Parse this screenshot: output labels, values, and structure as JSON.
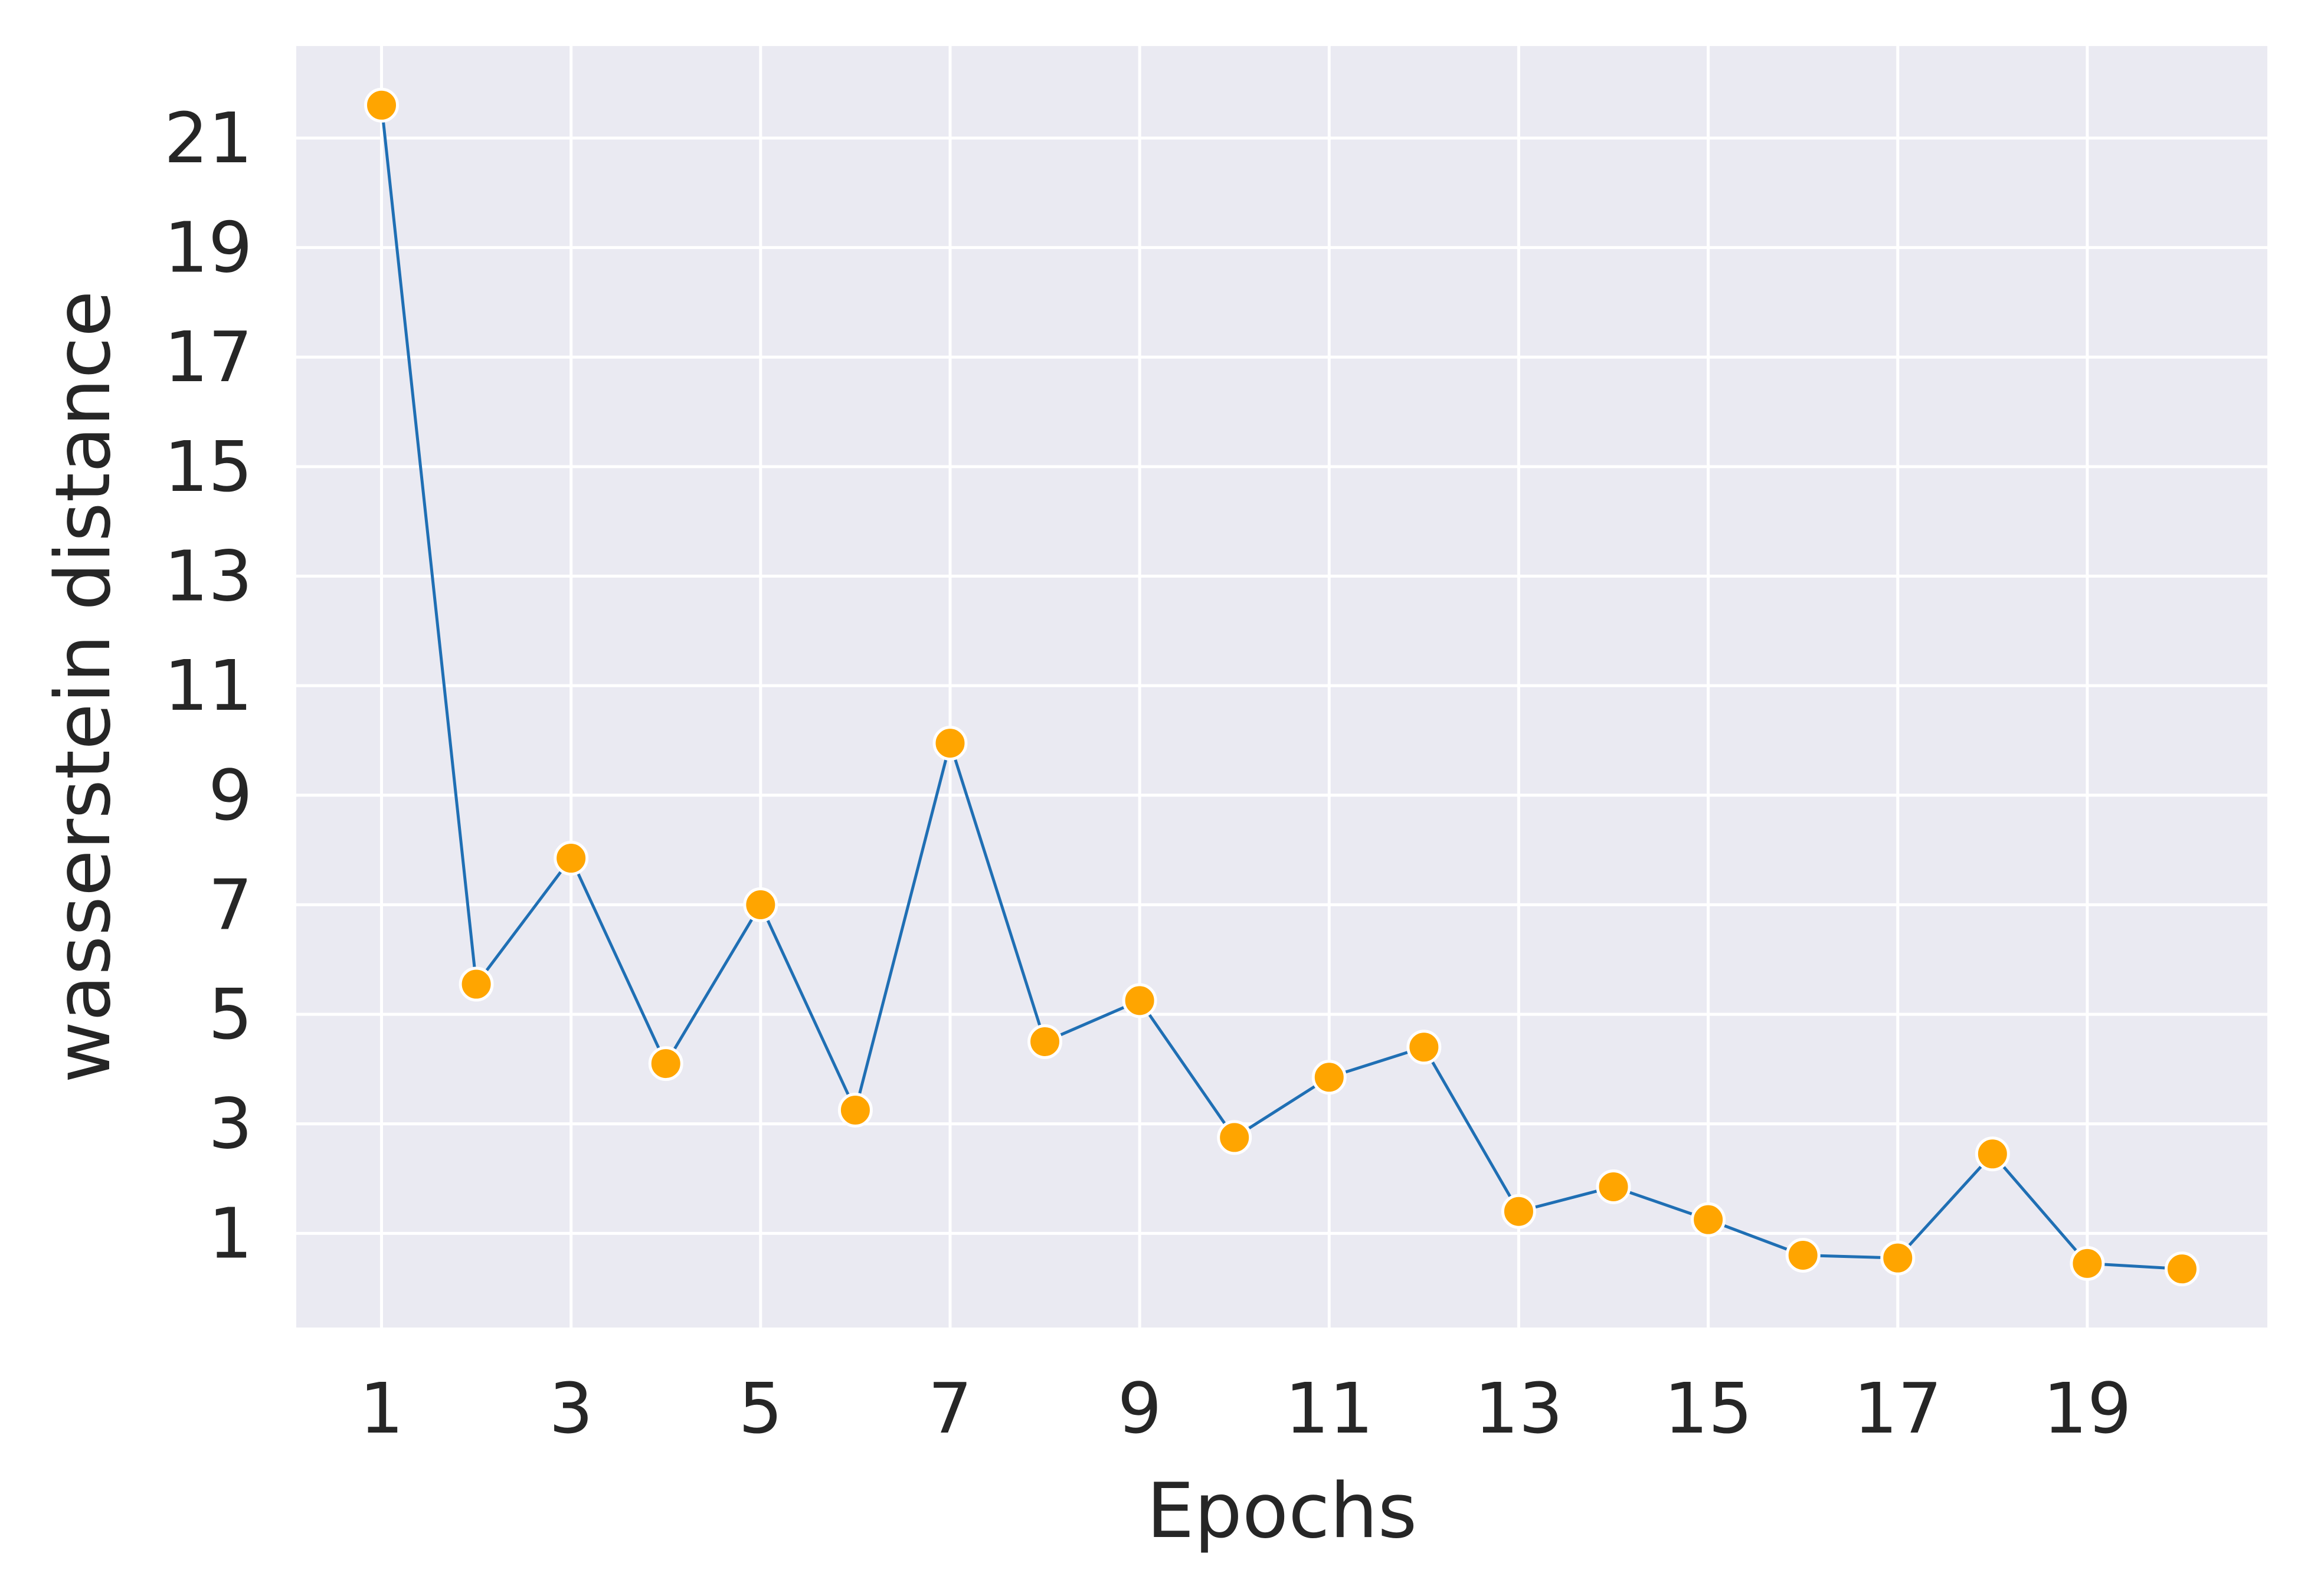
{
  "chart_data": {
    "type": "line",
    "xlabel": "Epochs",
    "ylabel": "wasserstein distance",
    "x": [
      1,
      2,
      3,
      4,
      5,
      6,
      7,
      8,
      9,
      10,
      11,
      12,
      13,
      14,
      15,
      16,
      17,
      18,
      19,
      20
    ],
    "series": [
      {
        "values": [
          21.6,
          5.55,
          7.85,
          4.1,
          7.0,
          3.25,
          9.95,
          4.5,
          5.25,
          2.75,
          3.85,
          4.4,
          1.4,
          1.85,
          1.25,
          0.6,
          0.55,
          2.45,
          0.45,
          0.35
        ],
        "line_color": "#1f6fb4",
        "marker_color": "#ffa500"
      }
    ],
    "xticks": [
      1,
      3,
      5,
      7,
      9,
      11,
      13,
      15,
      17,
      19
    ],
    "yticks": [
      1,
      3,
      5,
      7,
      9,
      11,
      13,
      15,
      17,
      19,
      21
    ],
    "xlim": [
      0.1,
      20.9
    ],
    "ylim": [
      -0.72,
      22.68
    ],
    "grid": true,
    "background_color": "#eaeaf2",
    "grid_color": "#ffffff"
  }
}
